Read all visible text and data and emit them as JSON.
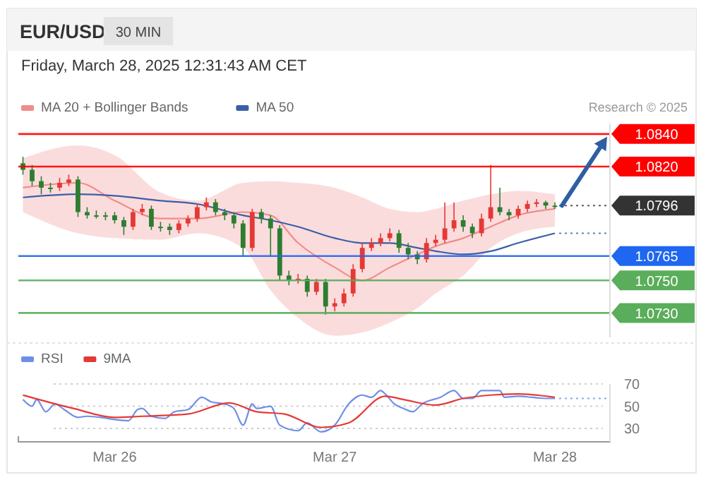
{
  "chart_data": [
    {
      "type": "candlestick",
      "title": "EUR/USD",
      "subtitle": "Friday, March 28, 2025 12:31:43 AM CET",
      "annotations": [
        "30 MIN",
        "Research © 2025"
      ],
      "x": [
        "2025-03-25T14:00",
        "2025-03-25T15:00",
        "2025-03-25T16:00",
        "2025-03-25T17:00",
        "2025-03-25T18:00",
        "2025-03-25T19:00",
        "2025-03-25T20:00",
        "2025-03-25T21:00",
        "2025-03-25T22:00",
        "2025-03-25T23:00",
        "2025-03-26T00:00",
        "2025-03-26T01:00",
        "2025-03-26T02:00",
        "2025-03-26T03:00",
        "2025-03-26T04:00",
        "2025-03-26T05:00",
        "2025-03-26T06:00",
        "2025-03-26T07:00",
        "2025-03-26T08:00",
        "2025-03-26T09:00",
        "2025-03-26T10:00",
        "2025-03-26T11:00",
        "2025-03-26T12:00",
        "2025-03-26T13:00",
        "2025-03-26T14:00",
        "2025-03-26T15:00",
        "2025-03-26T16:00",
        "2025-03-26T17:00",
        "2025-03-26T18:00",
        "2025-03-26T19:00",
        "2025-03-26T20:00",
        "2025-03-26T21:00",
        "2025-03-26T22:00",
        "2025-03-26T23:00",
        "2025-03-27T00:00",
        "2025-03-27T01:00",
        "2025-03-27T02:00",
        "2025-03-27T03:00",
        "2025-03-27T04:00",
        "2025-03-27T05:00",
        "2025-03-27T06:00",
        "2025-03-27T07:00",
        "2025-03-27T08:00",
        "2025-03-27T09:00",
        "2025-03-27T10:00",
        "2025-03-27T11:00",
        "2025-03-27T12:00",
        "2025-03-27T13:00",
        "2025-03-27T14:00",
        "2025-03-27T15:00",
        "2025-03-27T16:00",
        "2025-03-27T17:00",
        "2025-03-27T18:00",
        "2025-03-27T19:00",
        "2025-03-27T20:00",
        "2025-03-27T21:00",
        "2025-03-27T22:00",
        "2025-03-27T23:00",
        "2025-03-28T00:00"
      ],
      "ohlc": [
        [
          1.0822,
          1.0826,
          1.0815,
          1.0818
        ],
        [
          1.0818,
          1.0821,
          1.0808,
          1.0811
        ],
        [
          1.0811,
          1.0814,
          1.0803,
          1.0807
        ],
        [
          1.0807,
          1.081,
          1.0804,
          1.0807
        ],
        [
          1.0807,
          1.0813,
          1.0805,
          1.081
        ],
        [
          1.081,
          1.0815,
          1.0808,
          1.0812
        ],
        [
          1.0812,
          1.0814,
          1.0789,
          1.0792
        ],
        [
          1.0792,
          1.0795,
          1.0788,
          1.079
        ],
        [
          1.079,
          1.0793,
          1.0788,
          1.079
        ],
        [
          1.079,
          1.0792,
          1.0787,
          1.079
        ],
        [
          1.079,
          1.0792,
          1.0785,
          1.0787
        ],
        [
          1.0787,
          1.0789,
          1.0778,
          1.0783
        ],
        [
          1.0783,
          1.0794,
          1.0781,
          1.0792
        ],
        [
          1.0792,
          1.0797,
          1.079,
          1.0794
        ],
        [
          1.0794,
          1.0796,
          1.0781,
          1.0783
        ],
        [
          1.0783,
          1.0786,
          1.078,
          1.0783
        ],
        [
          1.0783,
          1.0785,
          1.0778,
          1.0781
        ],
        [
          1.0781,
          1.0787,
          1.0779,
          1.0785
        ],
        [
          1.0785,
          1.079,
          1.0783,
          1.0788
        ],
        [
          1.0788,
          1.0797,
          1.0786,
          1.0795
        ],
        [
          1.0795,
          1.0801,
          1.0793,
          1.0798
        ],
        [
          1.0798,
          1.08,
          1.079,
          1.0792
        ],
        [
          1.0792,
          1.0794,
          1.0787,
          1.079
        ],
        [
          1.079,
          1.0792,
          1.0782,
          1.0785
        ],
        [
          1.0785,
          1.0787,
          1.0765,
          1.077
        ],
        [
          1.077,
          1.0794,
          1.0768,
          1.0792
        ],
        [
          1.0792,
          1.0794,
          1.0785,
          1.0788
        ],
        [
          1.0788,
          1.079,
          1.0765,
          1.0782
        ],
        [
          1.0782,
          1.0784,
          1.075,
          1.0753
        ],
        [
          1.0753,
          1.0756,
          1.0747,
          1.075
        ],
        [
          1.075,
          1.0754,
          1.0748,
          1.0751
        ],
        [
          1.0751,
          1.0753,
          1.074,
          1.0743
        ],
        [
          1.0743,
          1.0751,
          1.0741,
          1.0749
        ],
        [
          1.0749,
          1.0751,
          1.0729,
          1.0734
        ],
        [
          1.0734,
          1.0739,
          1.0731,
          1.0736
        ],
        [
          1.0736,
          1.0745,
          1.0734,
          1.0742
        ],
        [
          1.0742,
          1.076,
          1.074,
          1.0757
        ],
        [
          1.0757,
          1.0773,
          1.0755,
          1.077
        ],
        [
          1.077,
          1.0776,
          1.0768,
          1.0773
        ],
        [
          1.0773,
          1.0779,
          1.0771,
          1.0776
        ],
        [
          1.0776,
          1.0782,
          1.0774,
          1.0779
        ],
        [
          1.0779,
          1.0781,
          1.0767,
          1.077
        ],
        [
          1.077,
          1.0773,
          1.0763,
          1.0766
        ],
        [
          1.0766,
          1.0768,
          1.076,
          1.0763
        ],
        [
          1.0763,
          1.0776,
          1.0761,
          1.0773
        ],
        [
          1.0773,
          1.0778,
          1.0771,
          1.0775
        ],
        [
          1.0775,
          1.0798,
          1.0773,
          1.0782
        ],
        [
          1.0782,
          1.0798,
          1.078,
          1.0787
        ],
        [
          1.0787,
          1.079,
          1.078,
          1.0783
        ],
        [
          1.0783,
          1.0785,
          1.0776,
          1.0779
        ],
        [
          1.0779,
          1.0791,
          1.0777,
          1.0788
        ],
        [
          1.0788,
          1.0821,
          1.0786,
          1.0795
        ],
        [
          1.0795,
          1.0807,
          1.079,
          1.0792
        ],
        [
          1.0792,
          1.0794,
          1.0787,
          1.079
        ],
        [
          1.079,
          1.0796,
          1.0788,
          1.0794
        ],
        [
          1.0794,
          1.0799,
          1.0792,
          1.0797
        ],
        [
          1.0797,
          1.08,
          1.0795,
          1.0798
        ],
        [
          1.0798,
          1.0799,
          1.0794,
          1.0796
        ],
        [
          1.0796,
          1.0798,
          1.0794,
          1.0796
        ]
      ],
      "colors": [
        "#2e7d32",
        "#2e7d32",
        "#2e7d32",
        "#2e7d32",
        "#e53935",
        "#e53935",
        "#2e7d32",
        "#2e7d32",
        "#2e7d32",
        "#2e7d32",
        "#2e7d32",
        "#2e7d32",
        "#e53935",
        "#e53935",
        "#2e7d32",
        "#2e7d32",
        "#2e7d32",
        "#e53935",
        "#e53935",
        "#e53935",
        "#e53935",
        "#2e7d32",
        "#2e7d32",
        "#2e7d32",
        "#2e7d32",
        "#e53935",
        "#2e7d32",
        "#2e7d32",
        "#2e7d32",
        "#2e7d32",
        "#e53935",
        "#2e7d32",
        "#e53935",
        "#2e7d32",
        "#e53935",
        "#e53935",
        "#e53935",
        "#e53935",
        "#e53935",
        "#e53935",
        "#e53935",
        "#2e7d32",
        "#2e7d32",
        "#2e7d32",
        "#e53935",
        "#e53935",
        "#e53935",
        "#e53935",
        "#2e7d32",
        "#2e7d32",
        "#e53935",
        "#e53935",
        "#2e7d32",
        "#2e7d32",
        "#e53935",
        "#e53935",
        "#e53935",
        "#2e7d32",
        "#2e7d32"
      ],
      "series": [
        {
          "type": "line",
          "name": "MA 20 + Bollinger Bands",
          "color": "#f28b8b",
          "x": [
            "2025-03-25T14:00",
            "2025-03-25T20:00",
            "2025-03-26T00:00",
            "2025-03-26T05:00",
            "2025-03-26T09:00",
            "2025-03-26T14:00",
            "2025-03-26T17:00",
            "2025-03-26T20:00",
            "2025-03-27T00:00",
            "2025-03-27T03:00",
            "2025-03-27T06:00",
            "2025-03-27T09:00",
            "2025-03-27T11:00",
            "2025-03-27T14:00",
            "2025-03-27T17:00",
            "2025-03-27T20:00",
            "2025-03-28T00:00"
          ],
          "values": [
            1.0807,
            1.081,
            1.0799,
            1.0788,
            1.0788,
            1.0792,
            1.079,
            1.0773,
            1.0758,
            1.075,
            1.0758,
            1.0766,
            1.0771,
            1.0776,
            1.0783,
            1.079,
            1.0794
          ],
          "upper": [
            1.0825,
            1.0833,
            1.0827,
            1.0804,
            1.0799,
            1.081,
            1.0811,
            1.081,
            1.0807,
            1.0801,
            1.0794,
            1.0792,
            1.0794,
            1.0799,
            1.0803,
            1.0805,
            1.0803
          ],
          "lower": [
            1.0792,
            1.0779,
            1.0776,
            1.0775,
            1.0779,
            1.077,
            1.0744,
            1.0727,
            1.0716,
            1.0718,
            1.0724,
            1.0733,
            1.0742,
            1.0753,
            1.077,
            1.0779,
            1.0783
          ]
        },
        {
          "type": "line",
          "name": "MA 50",
          "color": "#3a5fa8",
          "x": [
            "2025-03-25T14:00",
            "2025-03-25T20:00",
            "2025-03-26T00:00",
            "2025-03-26T05:00",
            "2025-03-26T09:00",
            "2025-03-26T14:00",
            "2025-03-26T17:00",
            "2025-03-26T20:00",
            "2025-03-27T00:00",
            "2025-03-27T03:00",
            "2025-03-27T06:00",
            "2025-03-27T09:00",
            "2025-03-27T11:00",
            "2025-03-27T14:00",
            "2025-03-27T17:00",
            "2025-03-27T20:00",
            "2025-03-28T00:00"
          ],
          "values": [
            1.0801,
            1.0803,
            1.0802,
            1.0799,
            1.0797,
            1.079,
            1.0787,
            1.0783,
            1.0776,
            1.0773,
            1.0773,
            1.077,
            1.0768,
            1.0766,
            1.0768,
            1.0773,
            1.0779
          ]
        }
      ],
      "xlim": [
        "2025-03-25T13:30",
        "2025-03-28T06:00"
      ],
      "ylim": [
        1.0715,
        1.0846
      ],
      "yticks": [
        {
          "value": 1.073,
          "label": "1.0730"
        },
        {
          "value": 1.075,
          "label": "1.0750"
        },
        1.0765,
        1.0796,
        {
          "value": 1.082,
          "label": "1.0820"
        },
        {
          "value": 1.084,
          "label": "1.0840"
        }
      ],
      "tick_labels": "y",
      "legend": "top left",
      "ref_lines": [
        {
          "axis": "y",
          "value": 1.084,
          "color": "#ff0000",
          "line_style": "solid"
        },
        {
          "axis": "y",
          "value": 1.082,
          "color": "#ff0000",
          "line_style": "solid"
        },
        {
          "axis": "y",
          "value": 1.0796,
          "color": "#333333",
          "line_style": "dotted"
        },
        {
          "axis": "y",
          "value": 1.0779,
          "color": "#3a5fa8",
          "line_style": "dotted"
        },
        {
          "axis": "y",
          "value": 1.0765,
          "color": "#1f66f0",
          "line_style": "solid"
        },
        {
          "axis": "y",
          "value": 1.075,
          "color": "#5aad5a",
          "line_style": "solid"
        },
        {
          "axis": "y",
          "value": 1.073,
          "color": "#5aad5a",
          "line_style": "solid"
        }
      ]
    },
    {
      "type": "line",
      "xlim": [
        "2025-03-25T13:30",
        "2025-03-28T06:00"
      ],
      "ylim": [
        18,
        70
      ],
      "yticks": [
        30,
        50,
        70
      ],
      "xticks": [
        {
          "value": "2025-03-26",
          "label": "Mar 26"
        },
        {
          "value": "2025-03-27",
          "label": "Mar 27"
        },
        {
          "value": "2025-03-28",
          "label": "Mar 28"
        }
      ],
      "grid": "y",
      "legend": "top left",
      "series": [
        {
          "name": "RSI",
          "color": "#6f8fe6",
          "x": [
            "2025-03-25T14:00",
            "2025-03-25T15:00",
            "2025-03-25T15:30",
            "2025-03-25T16:30",
            "2025-03-25T17:30",
            "2025-03-25T18:30",
            "2025-03-25T20:00",
            "2025-03-25T21:00",
            "2025-03-25T22:30",
            "2025-03-26T00:00",
            "2025-03-26T01:30",
            "2025-03-26T02:30",
            "2025-03-26T03:00",
            "2025-03-26T04:00",
            "2025-03-26T05:30",
            "2025-03-26T06:30",
            "2025-03-26T08:00",
            "2025-03-26T09:30",
            "2025-03-26T10:30",
            "2025-03-26T12:00",
            "2025-03-26T13:00",
            "2025-03-26T14:00",
            "2025-03-26T15:00",
            "2025-03-26T15:30",
            "2025-03-26T17:00",
            "2025-03-26T18:00",
            "2025-03-26T20:00",
            "2025-03-26T21:00",
            "2025-03-26T22:30",
            "2025-03-27T00:00",
            "2025-03-27T01:30",
            "2025-03-27T03:00",
            "2025-03-27T04:00",
            "2025-03-27T05:00",
            "2025-03-27T05:30",
            "2025-03-27T06:30",
            "2025-03-27T07:30",
            "2025-03-27T08:30",
            "2025-03-27T09:30",
            "2025-03-27T11:30",
            "2025-03-27T13:00",
            "2025-03-27T14:00",
            "2025-03-27T15:00",
            "2025-03-27T16:00",
            "2025-03-27T18:00",
            "2025-03-27T18:30",
            "2025-03-27T20:00",
            "2025-03-27T21:30",
            "2025-03-27T23:00",
            "2025-03-28T00:00"
          ],
          "values": [
            56,
            50,
            56,
            45,
            52,
            47,
            40,
            41,
            40,
            38,
            37,
            47,
            48,
            41,
            39,
            45,
            47,
            58,
            54,
            52,
            48,
            33,
            52,
            48,
            50,
            33,
            28,
            35,
            27,
            33,
            52,
            60,
            58,
            64,
            61,
            52,
            48,
            45,
            52,
            58,
            64,
            57,
            57,
            64,
            64,
            58,
            59,
            58,
            57,
            57
          ]
        },
        {
          "name": "9MA",
          "color": "#e53935",
          "x": [
            "2025-03-25T14:00",
            "2025-03-25T19:30",
            "2025-03-26T00:00",
            "2025-03-26T03:00",
            "2025-03-26T08:00",
            "2025-03-26T12:30",
            "2025-03-26T15:30",
            "2025-03-26T18:30",
            "2025-03-26T22:30",
            "2025-03-27T01:30",
            "2025-03-27T05:30",
            "2025-03-27T07:30",
            "2025-03-27T11:00",
            "2025-03-27T14:00",
            "2025-03-27T17:00",
            "2025-03-27T20:00",
            "2025-03-28T00:00"
          ],
          "values": [
            60,
            48,
            40,
            41,
            43,
            53,
            45,
            43,
            31,
            35,
            59,
            56,
            51,
            57,
            60,
            61,
            58
          ]
        }
      ],
      "ref_lines": [
        {
          "axis": "y",
          "value": 57,
          "color": "#6f8fe6",
          "line_style": "dotted"
        }
      ]
    }
  ]
}
